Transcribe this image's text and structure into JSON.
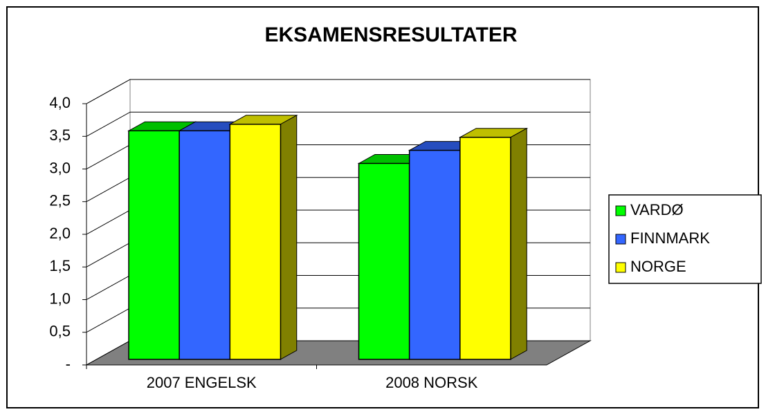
{
  "chart_data": {
    "type": "bar",
    "title": "EKSAMENSRESULTATER",
    "categories": [
      "2007 ENGELSK",
      "2008 NORSK"
    ],
    "series": [
      {
        "name": "VARDØ",
        "color": "#00ff00",
        "values": [
          3.5,
          3.0
        ]
      },
      {
        "name": "FINNMARK",
        "color": "#3366ff",
        "values": [
          3.5,
          3.2
        ]
      },
      {
        "name": "NORGE",
        "color": "#ffff00",
        "values": [
          3.6,
          3.4
        ]
      }
    ],
    "ylim": [
      0,
      4
    ],
    "yticks": [
      {
        "value": 0,
        "label": "-"
      },
      {
        "value": 0.5,
        "label": "0,5"
      },
      {
        "value": 1,
        "label": "1,0"
      },
      {
        "value": 1.5,
        "label": "1,5"
      },
      {
        "value": 2,
        "label": "2,0"
      },
      {
        "value": 2.5,
        "label": "2,5"
      },
      {
        "value": 3,
        "label": "3,0"
      },
      {
        "value": 3.5,
        "label": "3,5"
      },
      {
        "value": 4,
        "label": "4,0"
      }
    ],
    "grid": true,
    "legend": "right"
  }
}
